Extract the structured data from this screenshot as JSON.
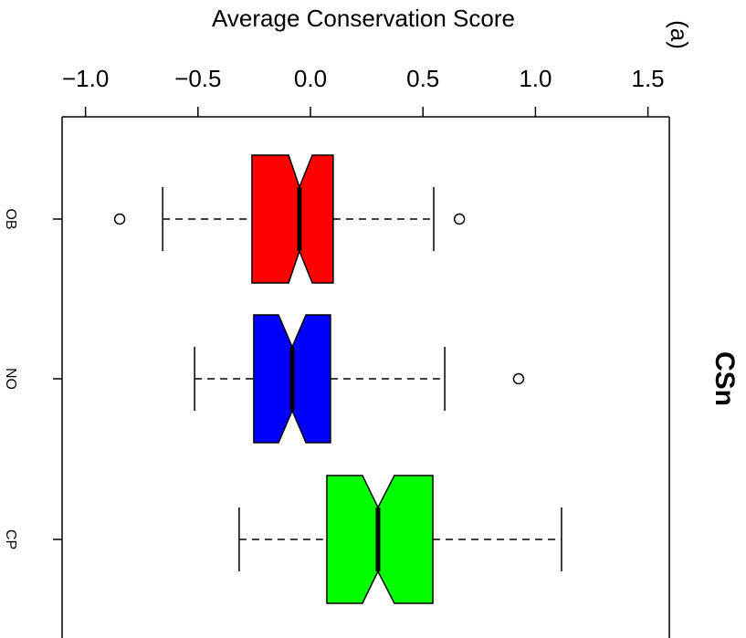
{
  "chart_data": {
    "type": "boxplot",
    "title": "Average Conservation Score",
    "label": "CSn",
    "annotation": "(a)",
    "categories": [
      "OB",
      "NO",
      "CP"
    ],
    "colors": [
      "#ff0000",
      "#0000ff",
      "#00ff00"
    ],
    "whisker_low": [
      -0.657,
      -0.515,
      -0.317
    ],
    "q1": [
      -0.26,
      -0.252,
      0.073
    ],
    "notch_low": [
      -0.097,
      -0.142,
      0.231
    ],
    "median": [
      -0.049,
      -0.081,
      0.3
    ],
    "notch_high": [
      0.008,
      -0.02,
      0.373
    ],
    "q3": [
      0.101,
      0.089,
      0.544
    ],
    "whisker_high": [
      0.548,
      0.597,
      1.116
    ],
    "outliers": [
      [
        -0.848,
        0.662
      ],
      [
        0.925
      ],
      []
    ],
    "xlim": [
      -1.104,
      1.595
    ],
    "xticks": [
      {
        "value": -1.0,
        "label": "−1.0"
      },
      {
        "value": -0.5,
        "label": "−0.5"
      },
      {
        "value": 0,
        "label": "0.0"
      },
      {
        "value": 0.5,
        "label": "0.5"
      },
      {
        "value": 1.0,
        "label": "1.0"
      },
      {
        "value": 1.5,
        "label": "1.5"
      }
    ]
  }
}
